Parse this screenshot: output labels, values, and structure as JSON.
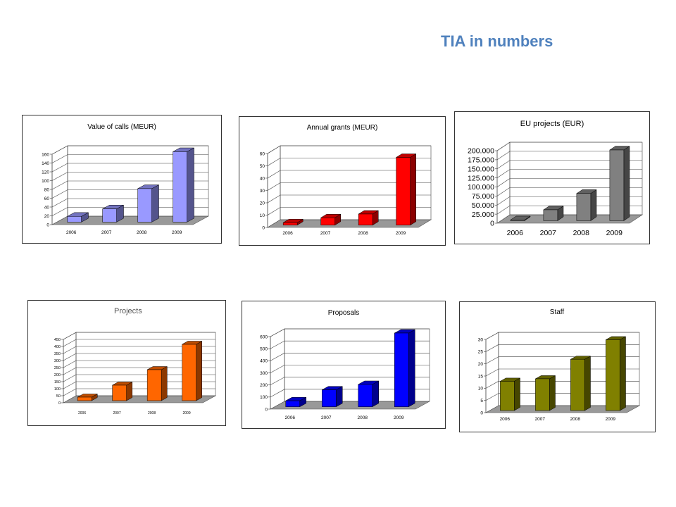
{
  "page": {
    "title": "TIA in numbers"
  },
  "chart_data": [
    {
      "type": "bar",
      "title": "Value of calls (MEUR)",
      "categories": [
        "2006",
        "2007",
        "2008",
        "2009"
      ],
      "values": [
        13,
        30,
        76,
        160
      ],
      "ylim": [
        0,
        160
      ],
      "yticks": [
        "0",
        "20",
        "40",
        "60",
        "80",
        "100",
        "120",
        "140",
        "160"
      ],
      "grid": true,
      "color": "#9999ff"
    },
    {
      "type": "bar",
      "title": "Annual grants (MEUR)",
      "categories": [
        "2006",
        "2007",
        "2008",
        "2009"
      ],
      "values": [
        2,
        6,
        9,
        55
      ],
      "ylim": [
        0,
        60
      ],
      "yticks": [
        "0",
        "10",
        "20",
        "30",
        "40",
        "50",
        "60"
      ],
      "grid": true,
      "color": "#ff0000"
    },
    {
      "type": "bar",
      "title": "EU projects (EUR)",
      "categories": [
        "2006",
        "2007",
        "2008",
        "2009"
      ],
      "values": [
        2000,
        30000,
        75000,
        195000
      ],
      "ylim": [
        0,
        200000
      ],
      "yticks": [
        "0",
        "25.000",
        "50.000",
        "75.000",
        "100.000",
        "125.000",
        "150.000",
        "175.000",
        "200.000"
      ],
      "grid": true,
      "color": "#808080"
    },
    {
      "type": "bar",
      "title": "Projects",
      "categories": [
        "2006",
        "2007",
        "2008",
        "2009"
      ],
      "values": [
        25,
        110,
        220,
        400
      ],
      "ylim": [
        0,
        450
      ],
      "yticks": [
        "0",
        "50",
        "100",
        "150",
        "200",
        "250",
        "300",
        "350",
        "400",
        "450"
      ],
      "grid": true,
      "color": "#ff6600"
    },
    {
      "type": "bar",
      "title": "Proposals",
      "categories": [
        "2006",
        "2007",
        "2008",
        "2009"
      ],
      "values": [
        50,
        140,
        185,
        610
      ],
      "ylim": [
        0,
        600
      ],
      "yticks": [
        "0",
        "100",
        "200",
        "300",
        "400",
        "500",
        "600"
      ],
      "grid": true,
      "color": "#0000ff"
    },
    {
      "type": "bar",
      "title": "Staff",
      "categories": [
        "2006",
        "2007",
        "2008",
        "2009"
      ],
      "values": [
        12,
        13,
        21,
        29
      ],
      "ylim": [
        0,
        30
      ],
      "yticks": [
        "0",
        "5",
        "10",
        "15",
        "20",
        "25",
        "30"
      ],
      "grid": true,
      "color": "#808000"
    }
  ]
}
